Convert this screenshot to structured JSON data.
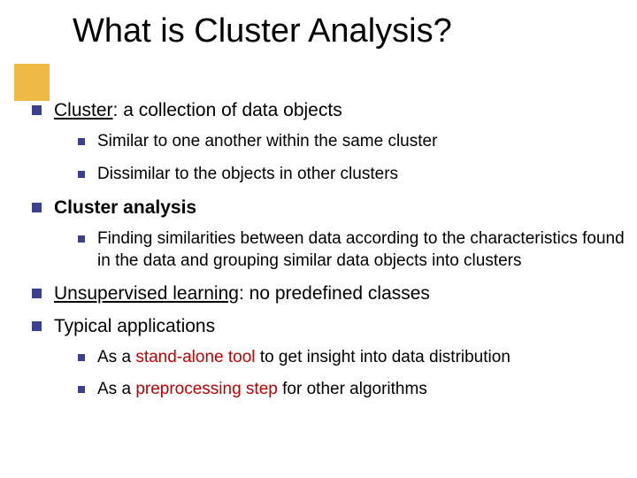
{
  "slide": {
    "title": "What is Cluster Analysis?",
    "accent_color": "#efb946",
    "bullet_color": "#3a3f8f",
    "highlight_color": "#c00000",
    "bg_color": "#ffffff",
    "title_fontsize": 38,
    "l1_fontsize": 21,
    "l2_fontsize": 19,
    "items": [
      {
        "lead_underline": "Cluster",
        "rest": ": a collection of data objects",
        "sub": [
          {
            "text": "Similar to one another within the same cluster"
          },
          {
            "text": "Dissimilar to the objects in other clusters"
          }
        ]
      },
      {
        "bold_lead": "Cluster analysis",
        "rest": "",
        "sub": [
          {
            "text": "Finding similarities between data according to the characteristics found in the data and grouping similar data objects into clusters"
          }
        ]
      },
      {
        "lead_underline": "Unsupervised learning",
        "rest": ": no predefined classes",
        "sub": []
      },
      {
        "plain": "Typical applications",
        "sub": [
          {
            "pre": "As a ",
            "red": "stand-alone tool ",
            "post": "to get insight into data distribution"
          },
          {
            "pre": "As a ",
            "red": "preprocessing step ",
            "post": "for other algorithms"
          }
        ]
      }
    ]
  }
}
